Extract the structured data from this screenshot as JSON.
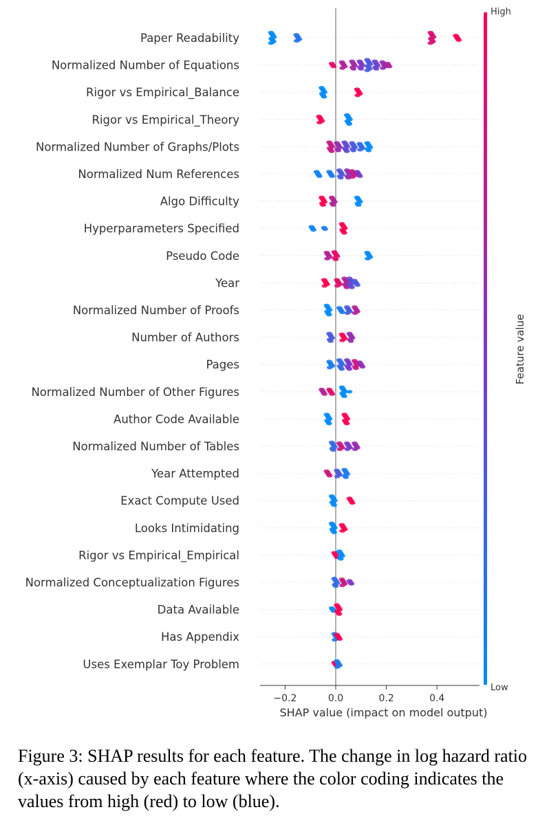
{
  "chart_data": {
    "type": "scatter",
    "subtype": "shap-beeswarm",
    "xlabel": "SHAP value (impact on model output)",
    "xlim": [
      -0.3,
      0.57
    ],
    "xticks": [
      -0.2,
      0.0,
      0.2,
      0.4
    ],
    "xtick_labels": [
      "−0.2",
      "0.0",
      "0.2",
      "0.4"
    ],
    "zero_line": 0.0,
    "colorbar": {
      "title": "Feature value",
      "high_label": "High",
      "low_label": "Low",
      "high_color": "#ff0052",
      "low_color": "#008bfb"
    },
    "features": [
      {
        "name": "Paper Readability",
        "clusters": [
          [
            -0.25,
            0.0,
            8
          ],
          [
            -0.15,
            0.15,
            5
          ],
          [
            0.38,
            0.85,
            8
          ],
          [
            0.48,
            1.0,
            4
          ]
        ]
      },
      {
        "name": "Normalized Number of Equations",
        "clusters": [
          [
            -0.01,
            0.9,
            3
          ],
          [
            0.03,
            0.7,
            5
          ],
          [
            0.07,
            0.65,
            6
          ],
          [
            0.1,
            0.5,
            6
          ],
          [
            0.13,
            0.3,
            8
          ],
          [
            0.16,
            0.45,
            6
          ],
          [
            0.19,
            0.6,
            5
          ],
          [
            0.21,
            0.7,
            3
          ]
        ]
      },
      {
        "name": "Rigor vs Empirical_Balance",
        "clusters": [
          [
            -0.05,
            0.0,
            7
          ],
          [
            0.09,
            1.0,
            5
          ]
        ]
      },
      {
        "name": "Rigor vs Empirical_Theory",
        "clusters": [
          [
            -0.06,
            1.0,
            5
          ],
          [
            0.05,
            0.0,
            7
          ]
        ]
      },
      {
        "name": "Normalized Number of Graphs/Plots",
        "clusters": [
          [
            -0.02,
            0.8,
            7
          ],
          [
            0.01,
            0.6,
            6
          ],
          [
            0.04,
            0.4,
            7
          ],
          [
            0.07,
            0.3,
            6
          ],
          [
            0.1,
            0.2,
            5
          ],
          [
            0.13,
            0.0,
            6
          ]
        ]
      },
      {
        "name": "Normalized Num References",
        "clusters": [
          [
            -0.07,
            0.05,
            4
          ],
          [
            -0.02,
            0.1,
            4
          ],
          [
            0.02,
            0.3,
            6
          ],
          [
            0.05,
            0.6,
            6
          ],
          [
            0.07,
            0.8,
            5
          ],
          [
            0.09,
            0.5,
            4
          ]
        ]
      },
      {
        "name": "Algo Difficulty",
        "clusters": [
          [
            -0.05,
            1.0,
            6
          ],
          [
            -0.01,
            0.7,
            6
          ],
          [
            0.09,
            0.0,
            6
          ]
        ]
      },
      {
        "name": "Hyperparameters Specified",
        "clusters": [
          [
            -0.09,
            0.05,
            3
          ],
          [
            -0.04,
            0.1,
            2
          ],
          [
            0.03,
            1.0,
            7
          ]
        ]
      },
      {
        "name": "Pseudo Code",
        "clusters": [
          [
            -0.03,
            0.7,
            5
          ],
          [
            0.0,
            0.9,
            6
          ],
          [
            0.13,
            0.0,
            5
          ]
        ]
      },
      {
        "name": "Year",
        "clusters": [
          [
            -0.04,
            1.0,
            5
          ],
          [
            0.01,
            0.9,
            5
          ],
          [
            0.04,
            0.7,
            7
          ],
          [
            0.06,
            0.4,
            7
          ],
          [
            0.08,
            0.3,
            4
          ]
        ]
      },
      {
        "name": "Normalized Number of Proofs",
        "clusters": [
          [
            -0.03,
            0.0,
            7
          ],
          [
            0.02,
            0.1,
            4
          ],
          [
            0.05,
            0.3,
            5
          ],
          [
            0.08,
            0.7,
            5
          ]
        ]
      },
      {
        "name": "Number of Authors",
        "clusters": [
          [
            -0.02,
            0.3,
            6
          ],
          [
            0.03,
            1.0,
            5
          ],
          [
            0.06,
            0.6,
            6
          ]
        ]
      },
      {
        "name": "Pages",
        "clusters": [
          [
            -0.02,
            0.1,
            5
          ],
          [
            0.02,
            0.2,
            7
          ],
          [
            0.05,
            0.5,
            7
          ],
          [
            0.08,
            0.8,
            6
          ],
          [
            0.1,
            0.6,
            4
          ]
        ]
      },
      {
        "name": "Normalized Number of Other Figures",
        "clusters": [
          [
            -0.05,
            0.7,
            4
          ],
          [
            -0.02,
            0.9,
            4
          ],
          [
            0.03,
            0.0,
            7
          ],
          [
            0.06,
            0.0,
            1
          ]
        ]
      },
      {
        "name": "Author Code Available",
        "clusters": [
          [
            -0.03,
            0.0,
            7
          ],
          [
            0.04,
            1.0,
            7
          ]
        ]
      },
      {
        "name": "Normalized Number of Tables",
        "clusters": [
          [
            -0.01,
            0.2,
            6
          ],
          [
            0.02,
            0.8,
            5
          ],
          [
            0.05,
            0.5,
            5
          ],
          [
            0.08,
            0.6,
            5
          ]
        ]
      },
      {
        "name": "Year Attempted",
        "clusters": [
          [
            -0.03,
            0.8,
            4
          ],
          [
            0.01,
            0.3,
            5
          ],
          [
            0.04,
            0.1,
            6
          ]
        ]
      },
      {
        "name": "Exact Compute Used",
        "clusters": [
          [
            -0.01,
            0.0,
            7
          ],
          [
            0.06,
            1.0,
            4
          ]
        ]
      },
      {
        "name": "Looks Intimidating",
        "clusters": [
          [
            -0.01,
            0.0,
            7
          ],
          [
            0.03,
            1.0,
            5
          ]
        ]
      },
      {
        "name": "Rigor vs Empirical_Empirical",
        "clusters": [
          [
            0.0,
            1.0,
            4
          ],
          [
            0.02,
            0.0,
            6
          ]
        ]
      },
      {
        "name": "Normalized Conceptualization Figures",
        "clusters": [
          [
            0.0,
            0.2,
            6
          ],
          [
            0.03,
            0.8,
            5
          ],
          [
            0.06,
            0.5,
            3
          ]
        ]
      },
      {
        "name": "Data Available",
        "clusters": [
          [
            -0.01,
            0.0,
            3
          ],
          [
            0.01,
            1.0,
            7
          ]
        ]
      },
      {
        "name": "Has Appendix",
        "clusters": [
          [
            0.0,
            0.1,
            5
          ],
          [
            0.01,
            1.0,
            4
          ]
        ]
      },
      {
        "name": "Uses Exemplar Toy Problem",
        "clusters": [
          [
            0.0,
            1.0,
            3
          ],
          [
            0.01,
            0.1,
            5
          ]
        ]
      }
    ]
  },
  "caption": "Figure 3: SHAP results for each feature. The change in log hazard ratio (x-axis) caused by each feature where the color coding indicates the values from high (red) to low (blue)."
}
